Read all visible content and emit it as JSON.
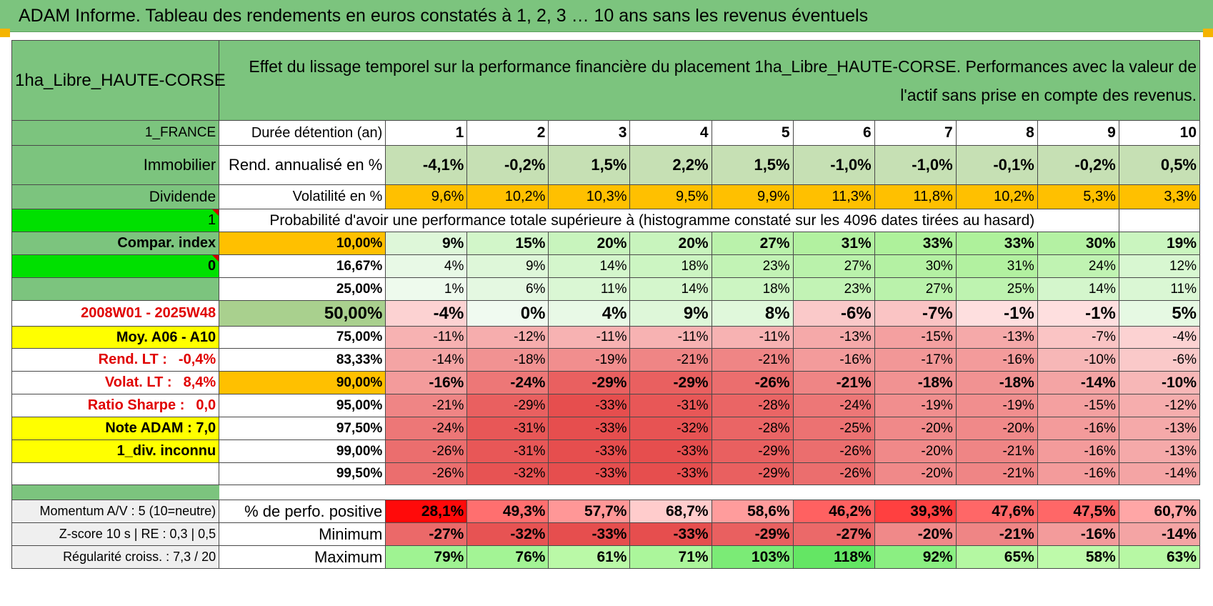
{
  "banner": {
    "title": "ADAM Informe. Tableau des rendements en euros constatés à 1, 2, 3 … 10 ans sans les revenus éventuels"
  },
  "header": {
    "placement": "1ha_Libre_HAUTE-CORSE",
    "description": "Effet du lissage temporel sur la performance financière du placement 1ha_Libre_HAUTE-CORSE. Performances avec la valeur de l'actif sans prise en compte des revenus."
  },
  "left": {
    "country": "1_FRANCE",
    "category": "Immobilier",
    "sub_category": "Dividende",
    "flag1": "1",
    "compar_label": "Compar. index",
    "flag2": "0",
    "period": "2008W01 - 2025W48",
    "moy": "Moy. A06 - A10",
    "rend_lt_label": "Rend. LT :",
    "rend_lt_value": "-0,4%",
    "volat_lt_label": "Volat. LT :",
    "volat_lt_value": "8,4%",
    "sharpe_label": "Ratio Sharpe :",
    "sharpe_value": "0,0",
    "note": "Note ADAM : 7,0",
    "div": "1_div. inconnu",
    "momentum": "Momentum A/V : 5 (10=neutre)",
    "zscore": "Z-score 10 s | RE : 0,3 | 0,5",
    "regularite": "Régularité croiss. : 7,3 / 20"
  },
  "table": {
    "duration_label": "Durée détention (an)",
    "years": [
      "1",
      "2",
      "3",
      "4",
      "5",
      "6",
      "7",
      "8",
      "9",
      "10"
    ],
    "rend_label": "Rend. annualisé en %",
    "rend": [
      "-4,1%",
      "-0,2%",
      "1,5%",
      "2,2%",
      "1,5%",
      "-1,0%",
      "-1,0%",
      "-0,1%",
      "-0,2%",
      "0,5%"
    ],
    "vol_label": "Volatilité en %",
    "vol": [
      "9,6%",
      "10,2%",
      "10,3%",
      "9,5%",
      "9,9%",
      "11,3%",
      "11,8%",
      "10,2%",
      "5,3%",
      "3,3%"
    ],
    "prob_label": "Probabilité d'avoir une performance totale supérieure à (histogramme constaté sur les 4096 dates tirées au hasard)",
    "percentiles": [
      {
        "label": "10,00%",
        "values": [
          "9%",
          "15%",
          "20%",
          "20%",
          "27%",
          "31%",
          "33%",
          "33%",
          "30%",
          "19%"
        ]
      },
      {
        "label": "16,67%",
        "values": [
          "4%",
          "9%",
          "14%",
          "18%",
          "23%",
          "27%",
          "30%",
          "31%",
          "24%",
          "12%"
        ]
      },
      {
        "label": "25,00%",
        "values": [
          "1%",
          "6%",
          "11%",
          "14%",
          "18%",
          "23%",
          "27%",
          "25%",
          "14%",
          "11%"
        ]
      },
      {
        "label": "50,00%",
        "values": [
          "-4%",
          "0%",
          "4%",
          "9%",
          "8%",
          "-6%",
          "-7%",
          "-1%",
          "-1%",
          "5%"
        ]
      },
      {
        "label": "75,00%",
        "values": [
          "-11%",
          "-12%",
          "-11%",
          "-11%",
          "-11%",
          "-13%",
          "-15%",
          "-13%",
          "-7%",
          "-4%"
        ]
      },
      {
        "label": "83,33%",
        "values": [
          "-14%",
          "-18%",
          "-19%",
          "-21%",
          "-21%",
          "-16%",
          "-17%",
          "-16%",
          "-10%",
          "-6%"
        ]
      },
      {
        "label": "90,00%",
        "values": [
          "-16%",
          "-24%",
          "-29%",
          "-29%",
          "-26%",
          "-21%",
          "-18%",
          "-18%",
          "-14%",
          "-10%"
        ]
      },
      {
        "label": "95,00%",
        "values": [
          "-21%",
          "-29%",
          "-33%",
          "-31%",
          "-28%",
          "-24%",
          "-19%",
          "-19%",
          "-15%",
          "-12%"
        ]
      },
      {
        "label": "97,50%",
        "values": [
          "-24%",
          "-31%",
          "-33%",
          "-32%",
          "-28%",
          "-25%",
          "-20%",
          "-20%",
          "-16%",
          "-13%"
        ]
      },
      {
        "label": "99,00%",
        "values": [
          "-26%",
          "-31%",
          "-33%",
          "-33%",
          "-29%",
          "-26%",
          "-20%",
          "-21%",
          "-16%",
          "-13%"
        ]
      },
      {
        "label": "99,50%",
        "values": [
          "-26%",
          "-32%",
          "-33%",
          "-33%",
          "-29%",
          "-26%",
          "-20%",
          "-21%",
          "-16%",
          "-14%"
        ]
      }
    ],
    "pos_label": "% de perfo. positive",
    "pos": [
      "28,1%",
      "49,3%",
      "57,7%",
      "68,7%",
      "58,6%",
      "46,2%",
      "39,3%",
      "47,6%",
      "47,5%",
      "60,7%"
    ],
    "min_label": "Minimum",
    "min": [
      "-27%",
      "-32%",
      "-33%",
      "-33%",
      "-29%",
      "-27%",
      "-20%",
      "-21%",
      "-16%",
      "-14%"
    ],
    "max_label": "Maximum",
    "max": [
      "79%",
      "76%",
      "61%",
      "71%",
      "103%",
      "118%",
      "92%",
      "65%",
      "58%",
      "63%"
    ]
  },
  "colors": {
    "header_green": "#7cc47e",
    "volatility_orange": "#ffc000",
    "highlight_yellow": "#ffff00",
    "flag_green": "#00e000",
    "label_red": "#e00000"
  }
}
